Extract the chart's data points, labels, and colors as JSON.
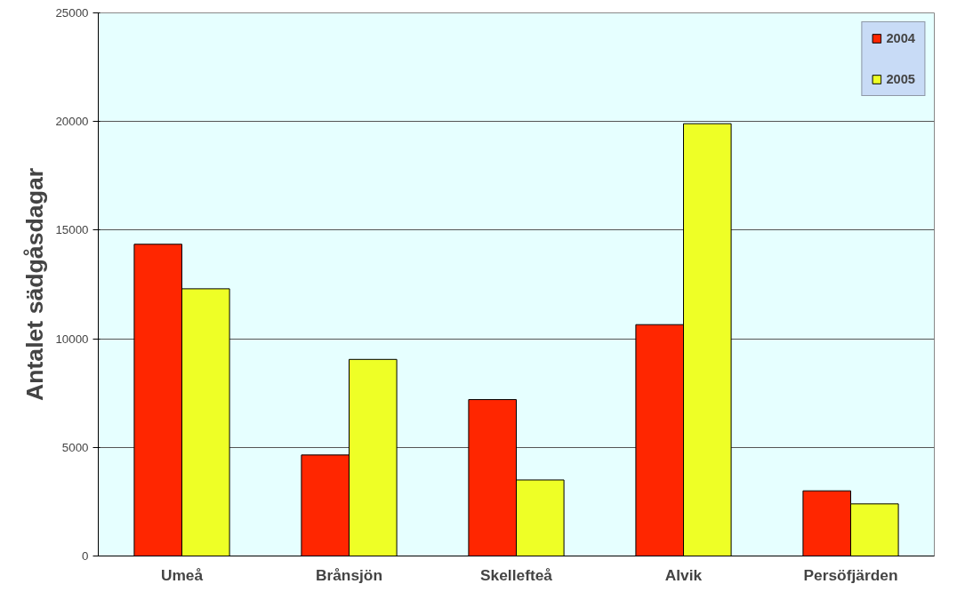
{
  "chart_data": {
    "type": "bar",
    "ylabel": "Antalet sädgåsdagar",
    "categories": [
      "Umeå",
      "Brånsjön",
      "Skellefteå",
      "Alvik",
      "Persöfjärden"
    ],
    "series": [
      {
        "name": "2004",
        "color": "#ff2600",
        "values": [
          14350,
          4650,
          7200,
          10650,
          3000
        ]
      },
      {
        "name": "2005",
        "color": "#eeff26",
        "values": [
          12300,
          9050,
          3500,
          19900,
          2400
        ]
      }
    ],
    "ylim": [
      0,
      25000
    ],
    "yticks": [
      0,
      5000,
      10000,
      15000,
      20000,
      25000
    ],
    "grid": "y",
    "legend": "top right"
  }
}
